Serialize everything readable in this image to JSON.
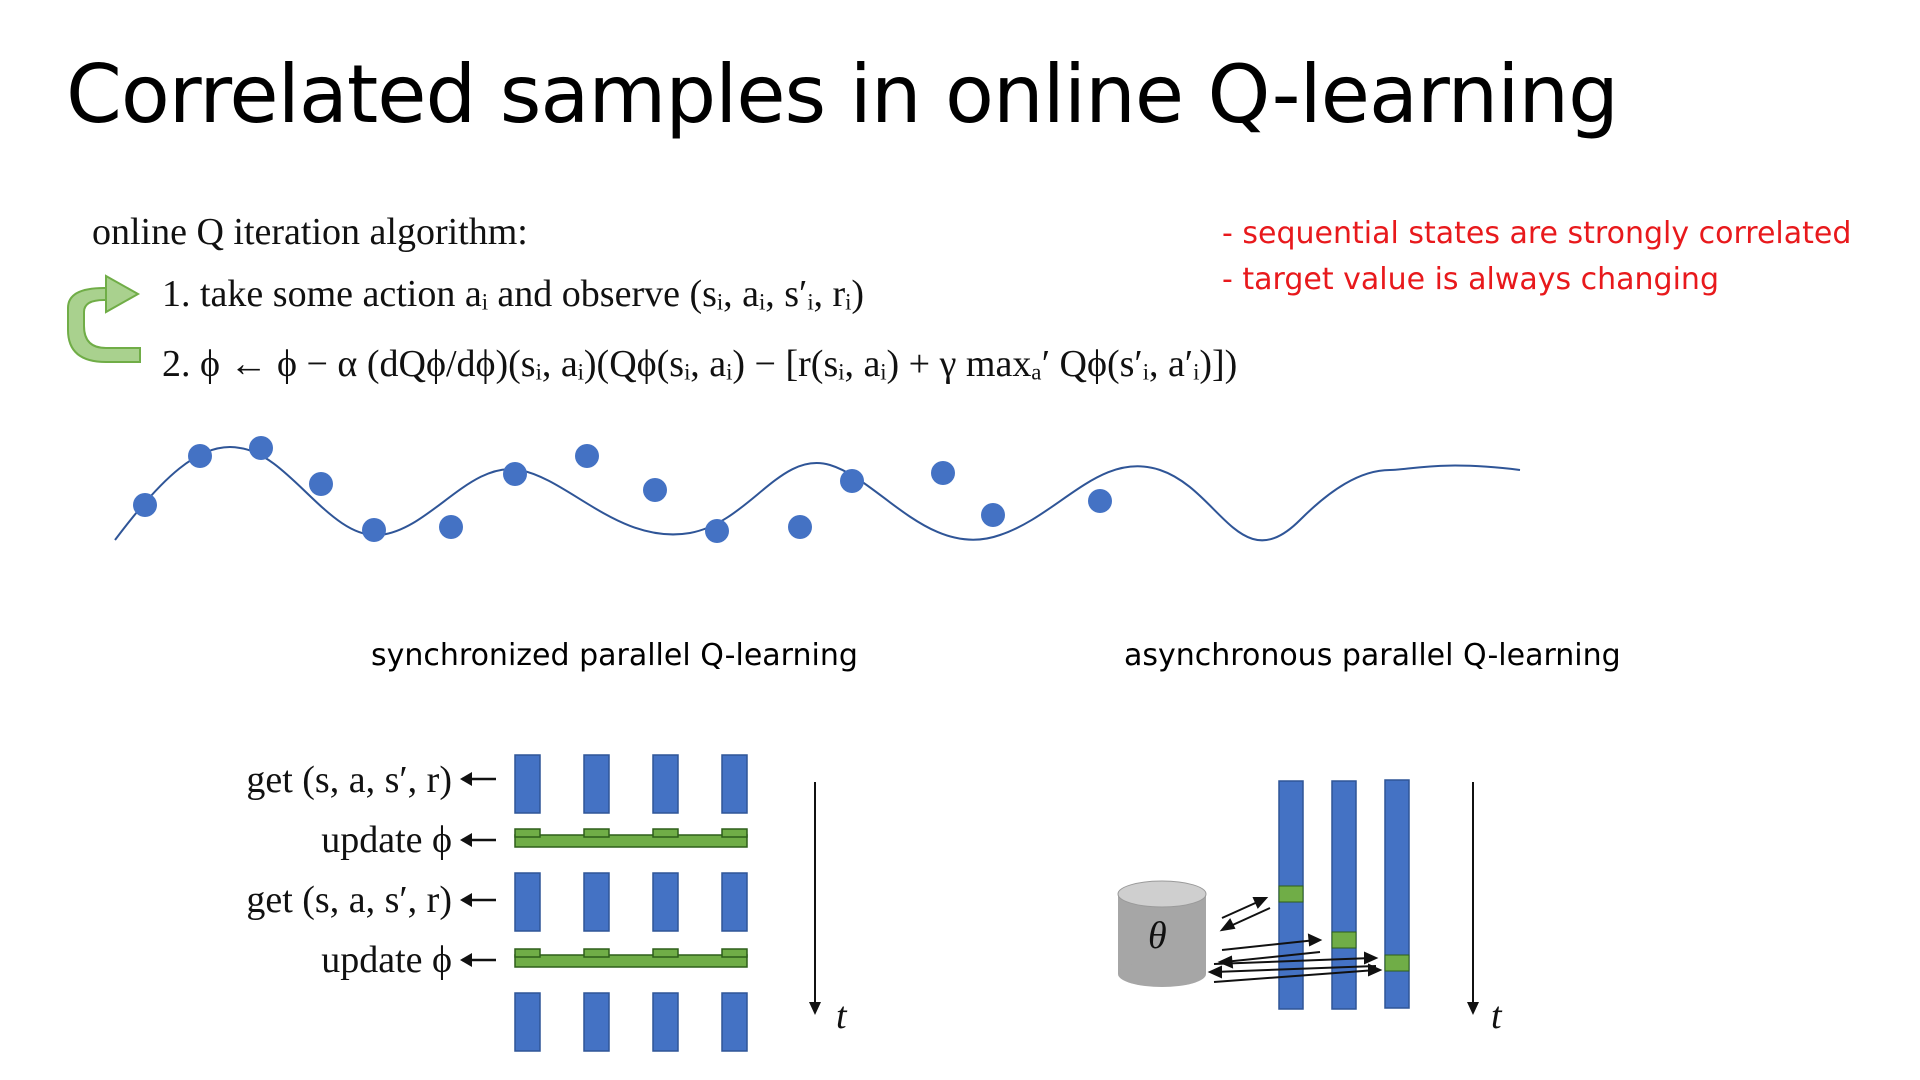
{
  "slide": {
    "title": "Correlated samples in online Q-learning",
    "algorithm": {
      "heading": "online Q iteration algorithm:",
      "step1": "1. take some action aᵢ and observe (sᵢ, aᵢ, s′ᵢ, rᵢ)",
      "step2": "2. ϕ ← ϕ − α (dQϕ/dϕ)(sᵢ, aᵢ)(Qϕ(sᵢ, aᵢ) − [r(sᵢ, aᵢ) + γ maxₐ′ Qϕ(s′ᵢ, a′ᵢ)])"
    },
    "notes": [
      "- sequential states are strongly correlated",
      "- target value is always changing"
    ],
    "sync": {
      "title": "synchronized parallel Q-learning",
      "rows": [
        "get (s, a, s′, r)",
        "update ϕ",
        "get (s, a, s′, r)",
        "update ϕ"
      ],
      "time_label": "t"
    },
    "async": {
      "title": "asynchronous parallel Q-learning",
      "store_label": "θ",
      "time_label": "t"
    },
    "colors": {
      "title": "#000000",
      "notes": "#e8191c",
      "block_blue": "#4472c4",
      "block_green": "#70ad47",
      "arrow_green": "#a9d18e",
      "curve": "#2f5597",
      "cylinder": "#a6a6a6"
    }
  }
}
